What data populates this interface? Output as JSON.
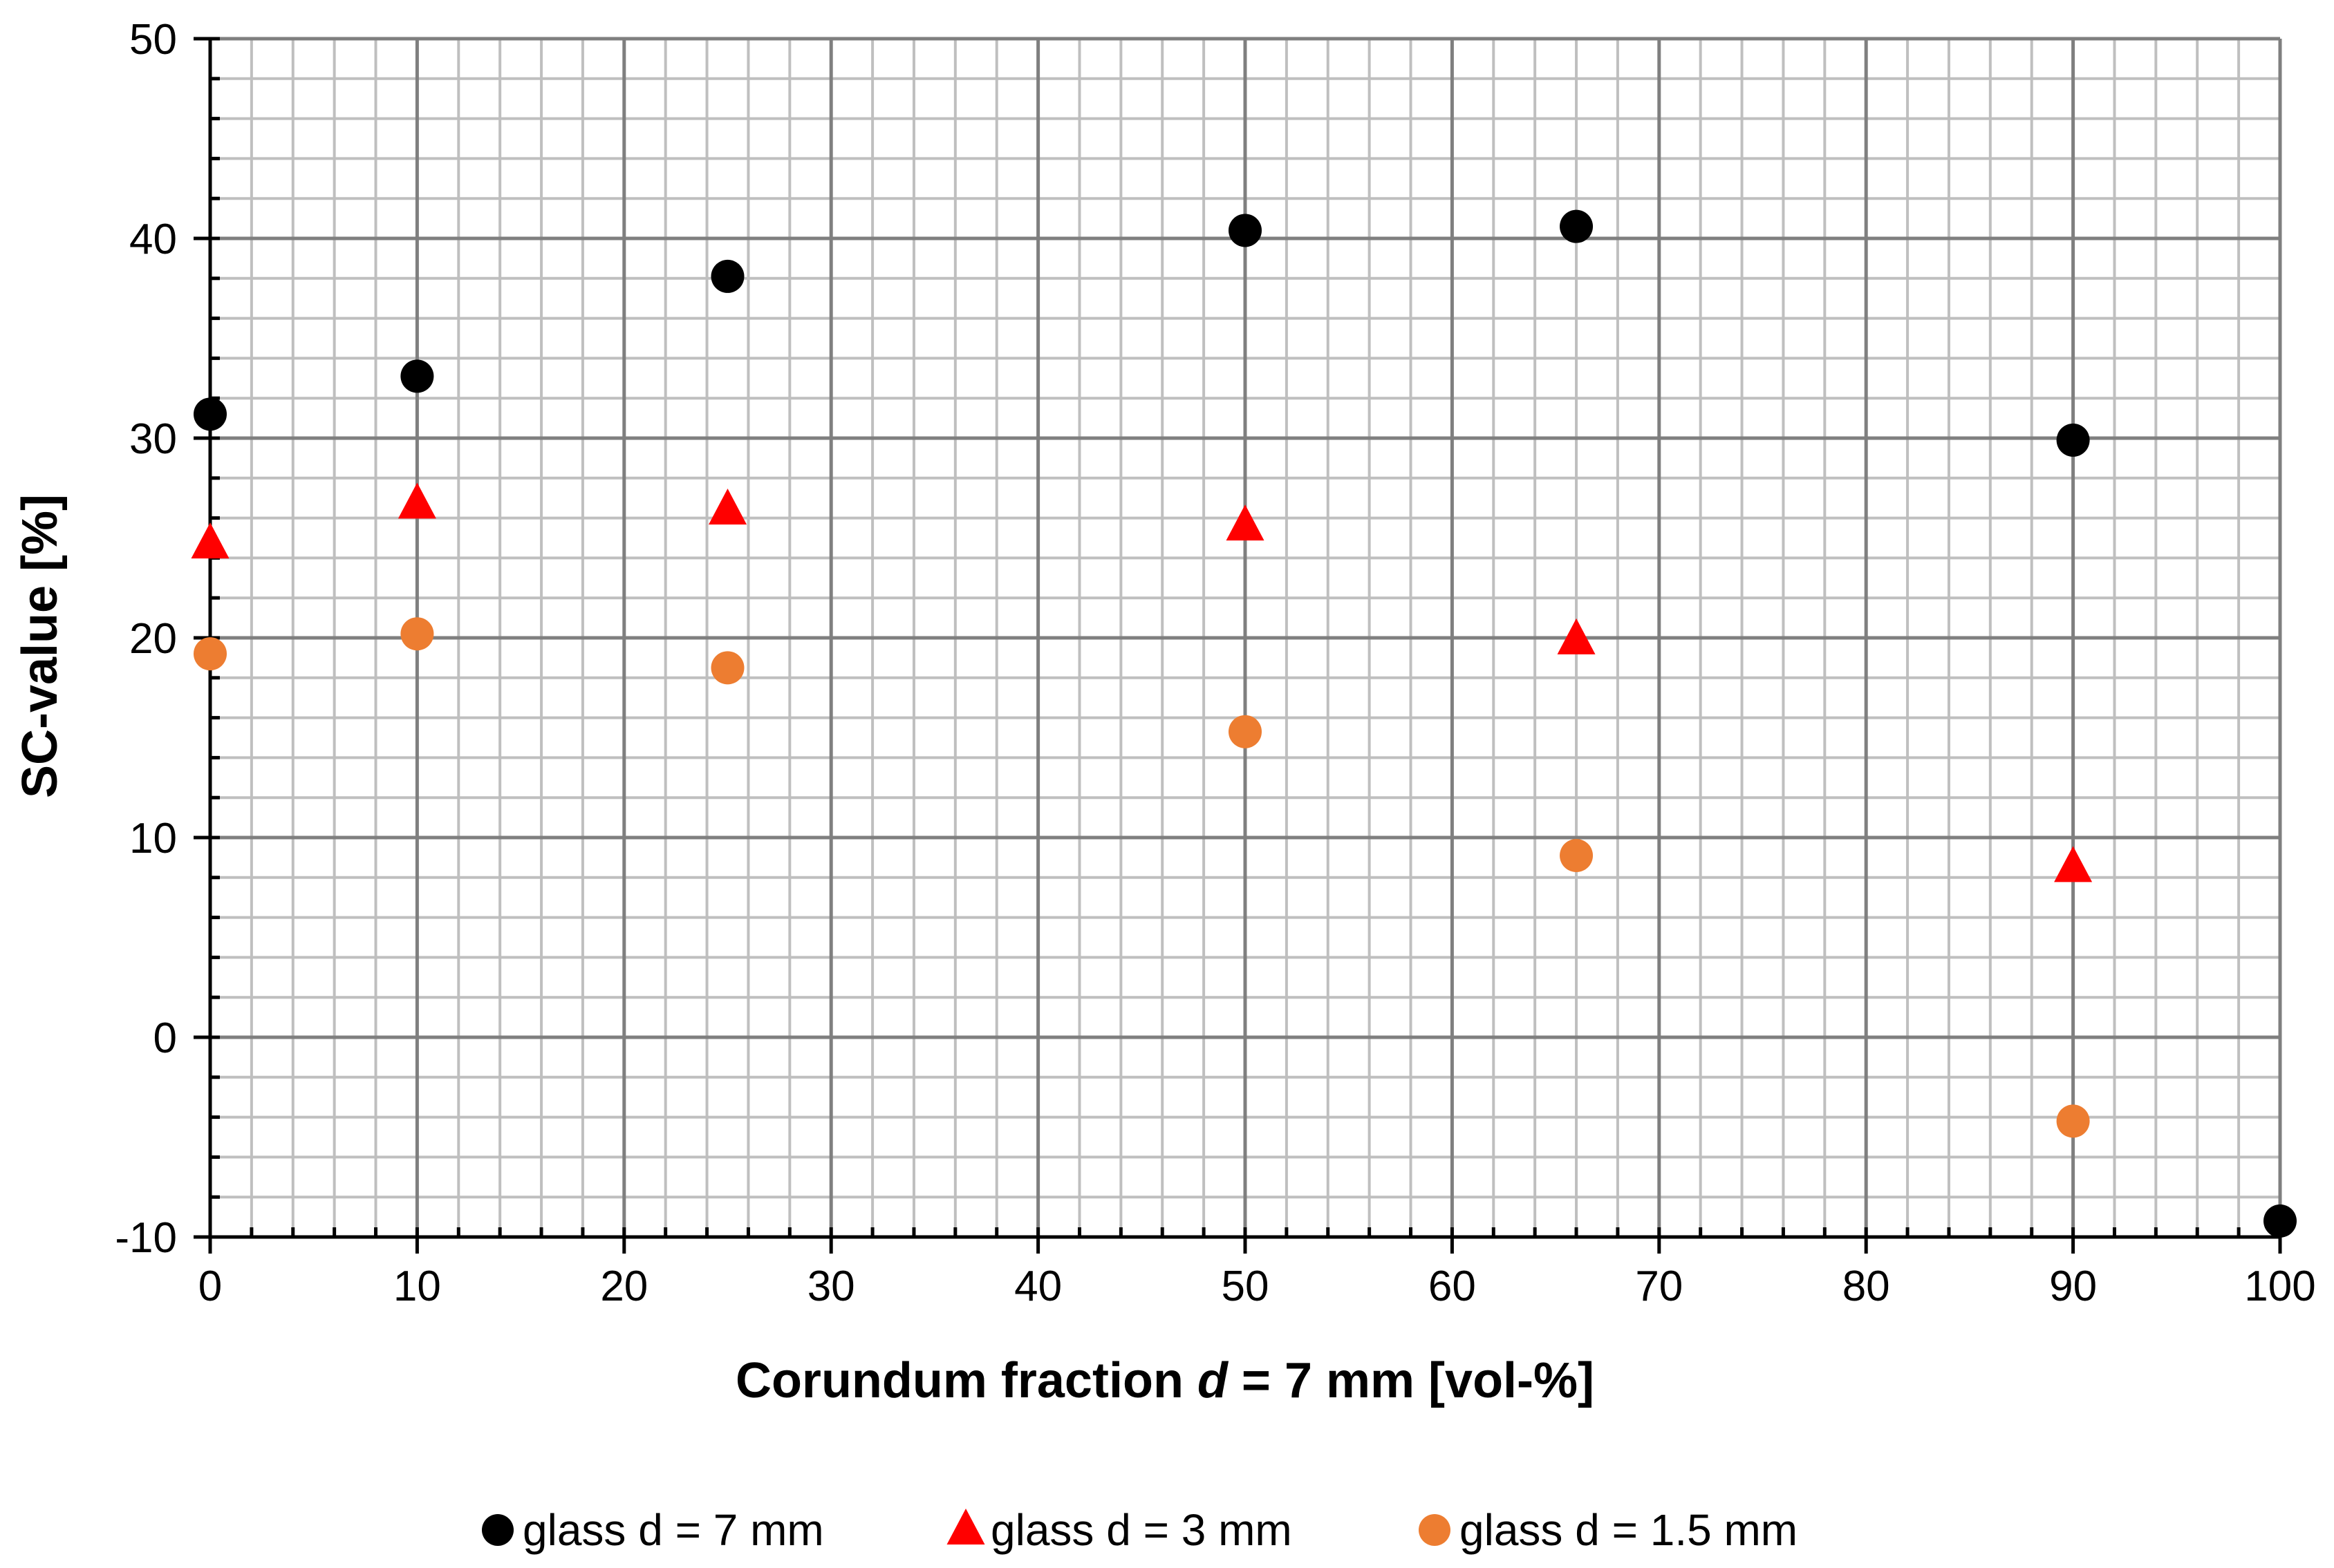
{
  "chart_data": {
    "type": "scatter",
    "title": "",
    "xlabel_parts": {
      "pre": "Corundum fraction ",
      "italic": "d",
      "post": " = 7 mm [vol-%]"
    },
    "ylabel": "SC-value [%]",
    "xlim": [
      0,
      100
    ],
    "ylim": [
      -10,
      50
    ],
    "x_ticks": [
      "0",
      "10",
      "20",
      "30",
      "40",
      "50",
      "60",
      "70",
      "80",
      "90",
      "100"
    ],
    "y_ticks": [
      "-10",
      "0",
      "10",
      "20",
      "30",
      "40",
      "50"
    ],
    "x_tick_values": [
      0,
      10,
      20,
      30,
      40,
      50,
      60,
      70,
      80,
      90,
      100
    ],
    "y_tick_values": [
      -10,
      0,
      10,
      20,
      30,
      40,
      50
    ],
    "grid": true,
    "legend_position": "bottom-center",
    "series": [
      {
        "name": "glass d = 7 mm",
        "marker": "circle",
        "color": "#000000",
        "points": [
          {
            "x": 0,
            "y": 31.2
          },
          {
            "x": 10,
            "y": 33.1
          },
          {
            "x": 25,
            "y": 38.1
          },
          {
            "x": 50,
            "y": 40.4
          },
          {
            "x": 66,
            "y": 40.6
          },
          {
            "x": 90,
            "y": 29.9
          },
          {
            "x": 100,
            "y": -9.2
          }
        ]
      },
      {
        "name": "glass d = 3 mm",
        "marker": "triangle",
        "color": "#ff0000",
        "points": [
          {
            "x": 0,
            "y": 24.7
          },
          {
            "x": 10,
            "y": 26.7
          },
          {
            "x": 25,
            "y": 26.4
          },
          {
            "x": 50,
            "y": 25.6
          },
          {
            "x": 66,
            "y": 19.9
          },
          {
            "x": 90,
            "y": 8.5
          }
        ]
      },
      {
        "name": "glass d = 1.5 mm",
        "marker": "circle",
        "color": "#ed7d31",
        "points": [
          {
            "x": 0,
            "y": 19.2
          },
          {
            "x": 10,
            "y": 20.2
          },
          {
            "x": 25,
            "y": 18.5
          },
          {
            "x": 50,
            "y": 15.3
          },
          {
            "x": 66,
            "y": 9.1
          },
          {
            "x": 90,
            "y": -4.2
          }
        ]
      }
    ]
  }
}
